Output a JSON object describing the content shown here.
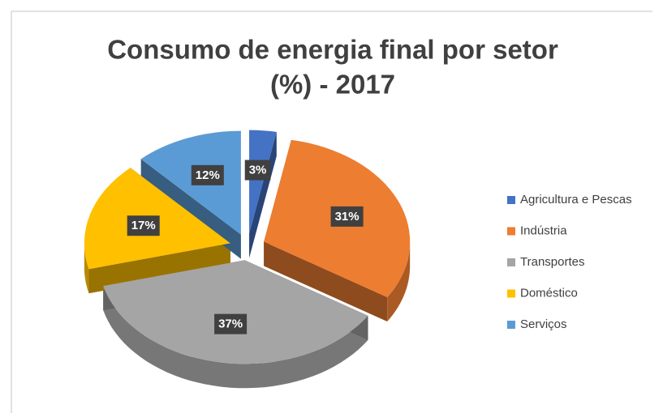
{
  "chart_data": {
    "type": "pie3d",
    "title": [
      "Consumo de energia final por setor",
      "(%) - 2017"
    ],
    "categories": [
      "Agricultura e Pescas",
      "Indústria",
      "Transportes",
      "Doméstico",
      "Serviços"
    ],
    "values": [
      3,
      31,
      37,
      17,
      12
    ],
    "value_labels": [
      "3%",
      "31%",
      "37%",
      "17%",
      "12%"
    ],
    "colors": [
      "#4472c4",
      "#ed7d31",
      "#a5a5a5",
      "#ffc000",
      "#5b9bd5"
    ],
    "legend": "right"
  }
}
